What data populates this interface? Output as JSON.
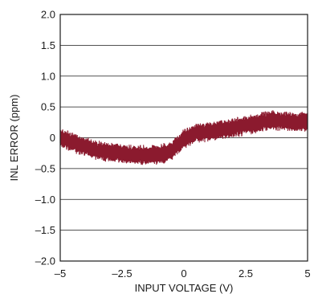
{
  "chart_data": {
    "type": "line",
    "title": "",
    "xlabel": "INPUT VOLTAGE (V)",
    "ylabel": "INL ERROR (ppm)",
    "xlim": [
      -5,
      5
    ],
    "ylim": [
      -2.0,
      2.0
    ],
    "xticks": [
      -5,
      -2.5,
      0,
      2.5,
      5
    ],
    "xtick_labels": [
      "–5",
      "–2.5",
      "0",
      "2.5",
      "5"
    ],
    "yticks": [
      2.0,
      1.5,
      1.0,
      0.5,
      0,
      -0.5,
      -1.0,
      -1.5,
      -2.0
    ],
    "ytick_labels": [
      "2.0",
      "1.5",
      "1.0",
      "0.5",
      "0",
      "–0.5",
      "–1.0",
      "–1.5",
      "–2.0"
    ],
    "grid": "horizontal",
    "series": [
      {
        "color": "#8b1a2e",
        "band_halfwidth": 0.14,
        "x": [
          -5,
          -4.5,
          -4,
          -3.5,
          -3,
          -2.5,
          -2,
          -1.5,
          -1,
          -0.5,
          0,
          0.5,
          1,
          1.5,
          2,
          2.5,
          3,
          3.5,
          4,
          4.5,
          5
        ],
        "values": [
          0.0,
          -0.08,
          -0.14,
          -0.2,
          -0.24,
          -0.26,
          -0.28,
          -0.28,
          -0.27,
          -0.22,
          -0.02,
          0.08,
          0.1,
          0.13,
          0.16,
          0.2,
          0.24,
          0.28,
          0.27,
          0.26,
          0.26
        ]
      }
    ]
  }
}
